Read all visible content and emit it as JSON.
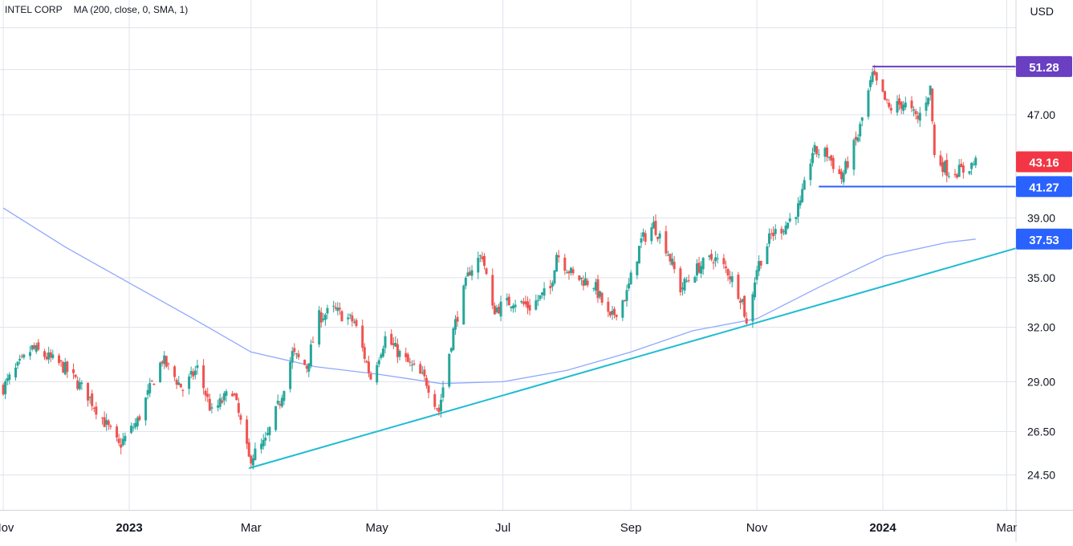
{
  "legend": {
    "symbol": "INTEL CORP",
    "indicator": "MA (200, close, 0, SMA, 1)"
  },
  "currency": "USD",
  "colors": {
    "up": "#26a69a",
    "down": "#ef5350",
    "ma": "#90a8ff",
    "trendline": "#1fbcd2",
    "resistance": "#6a3fc2",
    "support": "#2962ff",
    "last_price_tag": "#f23645",
    "support_tag": "#2962ff",
    "resistance_tag": "#6a3fc2",
    "ma_tag": "#2962ff",
    "grid": "#e0e3eb"
  },
  "chart_data": {
    "type": "candlestick",
    "y_axis": {
      "ticks": [
        "24.50",
        "26.50",
        "29.00",
        "32.00",
        "35.00",
        "39.00",
        "47.00"
      ],
      "scale": "log",
      "range": [
        23.0,
        57.0
      ]
    },
    "x_axis": {
      "ticks": [
        {
          "label": "Nov",
          "date": "2022-11-01",
          "bold": false
        },
        {
          "label": "2023",
          "date": "2023-01-01",
          "bold": true
        },
        {
          "label": "Mar",
          "date": "2023-03-01",
          "bold": false
        },
        {
          "label": "May",
          "date": "2023-05-01",
          "bold": false
        },
        {
          "label": "Jul",
          "date": "2023-07-01",
          "bold": false
        },
        {
          "label": "Sep",
          "date": "2023-09-01",
          "bold": false
        },
        {
          "label": "Nov",
          "date": "2023-11-01",
          "bold": false
        },
        {
          "label": "2024",
          "date": "2024-01-01",
          "bold": true
        },
        {
          "label": "Mar",
          "date": "2024-03-01",
          "bold": false
        }
      ]
    },
    "price_tags": [
      {
        "value": "51.28",
        "role": "resistance"
      },
      {
        "value": "43.16",
        "role": "last"
      },
      {
        "value": "41.27",
        "role": "support"
      },
      {
        "value": "37.53",
        "role": "ma"
      }
    ],
    "horizontal_lines": [
      {
        "name": "resistance",
        "value": 51.28,
        "from": "2023-12-27"
      },
      {
        "name": "support",
        "value": 41.27,
        "from": "2023-12-01"
      }
    ],
    "trendline": {
      "from": {
        "date": "2023-02-28",
        "value": 24.8
      },
      "to": {
        "date": "2023-10-27",
        "value": 32.1
      }
    },
    "price_anchors": [
      [
        "2022-11-01",
        28.7
      ],
      [
        "2022-11-15",
        30.8
      ],
      [
        "2022-11-30",
        29.8
      ],
      [
        "2022-12-12",
        28.3
      ],
      [
        "2022-12-27",
        25.8
      ],
      [
        "2023-01-05",
        27.0
      ],
      [
        "2023-01-17",
        30.2
      ],
      [
        "2023-01-27",
        28.6
      ],
      [
        "2023-02-03",
        29.7
      ],
      [
        "2023-02-10",
        27.4
      ],
      [
        "2023-02-20",
        28.6
      ],
      [
        "2023-02-28",
        25.2
      ],
      [
        "2023-03-08",
        26.0
      ],
      [
        "2023-03-15",
        28.0
      ],
      [
        "2023-03-21",
        30.5
      ],
      [
        "2023-03-28",
        29.8
      ],
      [
        "2023-04-03",
        32.6
      ],
      [
        "2023-04-10",
        33.0
      ],
      [
        "2023-04-20",
        32.3
      ],
      [
        "2023-04-28",
        29.2
      ],
      [
        "2023-05-05",
        31.4
      ],
      [
        "2023-05-15",
        30.1
      ],
      [
        "2023-05-25",
        29.0
      ],
      [
        "2023-05-31",
        27.5
      ],
      [
        "2023-06-07",
        31.8
      ],
      [
        "2023-06-15",
        35.5
      ],
      [
        "2023-06-21",
        36.5
      ],
      [
        "2023-06-26",
        33.0
      ],
      [
        "2023-07-06",
        33.6
      ],
      [
        "2023-07-14",
        33.2
      ],
      [
        "2023-07-24",
        34.3
      ],
      [
        "2023-07-27",
        36.6
      ],
      [
        "2023-08-04",
        35.1
      ],
      [
        "2023-08-14",
        34.6
      ],
      [
        "2023-08-22",
        32.4
      ],
      [
        "2023-08-30",
        34.0
      ],
      [
        "2023-09-06",
        37.4
      ],
      [
        "2023-09-12",
        38.5
      ],
      [
        "2023-09-18",
        37.0
      ],
      [
        "2023-09-25",
        34.3
      ],
      [
        "2023-10-04",
        35.7
      ],
      [
        "2023-10-11",
        36.3
      ],
      [
        "2023-10-18",
        35.4
      ],
      [
        "2023-10-25",
        33.6
      ],
      [
        "2023-10-27",
        32.1
      ],
      [
        "2023-11-01",
        35.6
      ],
      [
        "2023-11-08",
        37.8
      ],
      [
        "2023-11-15",
        38.5
      ],
      [
        "2023-11-22",
        39.9
      ],
      [
        "2023-11-28",
        44.0
      ],
      [
        "2023-12-05",
        43.8
      ],
      [
        "2023-12-12",
        41.9
      ],
      [
        "2023-12-20",
        45.2
      ],
      [
        "2023-12-27",
        50.4
      ],
      [
        "2024-01-04",
        47.5
      ],
      [
        "2024-01-11",
        48.0
      ],
      [
        "2024-01-18",
        46.6
      ],
      [
        "2024-01-24",
        49.3
      ],
      [
        "2024-01-26",
        43.6
      ],
      [
        "2024-02-02",
        42.4
      ],
      [
        "2024-02-09",
        42.5
      ],
      [
        "2024-02-15",
        43.16
      ]
    ],
    "ma_200": [
      [
        "2022-11-01",
        39.7
      ],
      [
        "2022-12-01",
        37.0
      ],
      [
        "2023-01-02",
        34.6
      ],
      [
        "2023-02-01",
        32.5
      ],
      [
        "2023-03-01",
        30.6
      ],
      [
        "2023-04-01",
        29.8
      ],
      [
        "2023-05-01",
        29.4
      ],
      [
        "2023-06-01",
        28.9
      ],
      [
        "2023-07-01",
        29.0
      ],
      [
        "2023-08-01",
        29.6
      ],
      [
        "2023-09-01",
        30.6
      ],
      [
        "2023-10-01",
        31.8
      ],
      [
        "2023-11-01",
        32.5
      ],
      [
        "2023-12-01",
        34.4
      ],
      [
        "2024-01-02",
        36.4
      ],
      [
        "2024-02-01",
        37.3
      ],
      [
        "2024-02-15",
        37.53
      ]
    ]
  }
}
